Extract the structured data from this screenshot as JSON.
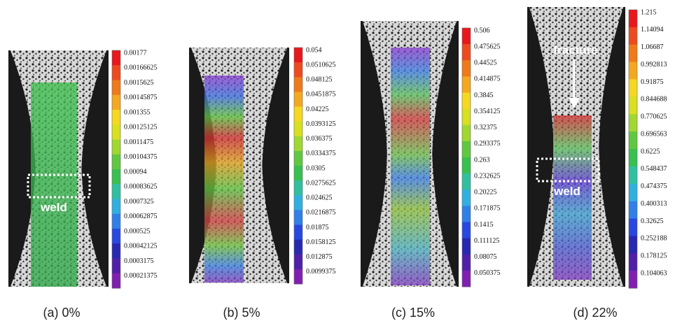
{
  "panels": [
    {
      "caption": "(a) 0%",
      "label": "weld",
      "scale": [
        "0.00177",
        "0.00166625",
        "0.0015625",
        "0.00145875",
        "0.001355",
        "0.00125125",
        "0.0011475",
        "0.00104375",
        "0.00094",
        "0.00083625",
        "0.0007325",
        "0.00062875",
        "0.000525",
        "0.00042125",
        "0.0003175",
        "0.00021375"
      ]
    },
    {
      "caption": "(b) 5%",
      "scale": [
        "0.054",
        "0.0510625",
        "0.048125",
        "0.0451875",
        "0.04225",
        "0.0393125",
        "0.036375",
        "0.0334375",
        "0.0305",
        "0.0275625",
        "0.024625",
        "0.0216875",
        "0.01875",
        "0.0158125",
        "0.012875",
        "0.0099375"
      ]
    },
    {
      "caption": "(c) 15%",
      "scale": [
        "0.506",
        "0.475625",
        "0.44525",
        "0.414875",
        "0.3845",
        "0.354125",
        "0.32375",
        "0.293375",
        "0.263",
        "0.232625",
        "0.20225",
        "0.171875",
        "0.1415",
        "0.111125",
        "0.08075",
        "0.050375"
      ]
    },
    {
      "caption": "(d) 22%",
      "label": "weld",
      "arrow_label": "fracture",
      "scale": [
        "1.215",
        "1.14094",
        "1.06687",
        "0.992813",
        "0.91875",
        "0.844688",
        "0.770625",
        "0.696563",
        "0.6225",
        "0.548437",
        "0.474375",
        "0.400313",
        "0.32625",
        "0.252188",
        "0.178125",
        "0.104063"
      ]
    }
  ]
}
